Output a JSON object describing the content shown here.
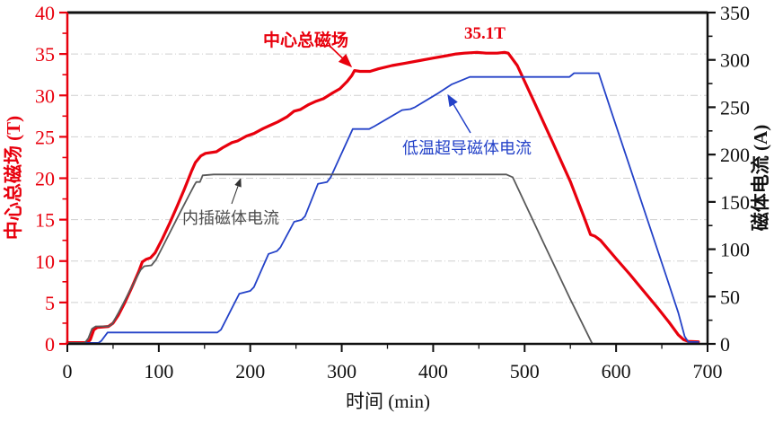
{
  "figure": {
    "x_axis": {
      "label": "时间 (min)",
      "min": 0,
      "max": 700,
      "major_ticks": [
        0,
        100,
        200,
        300,
        400,
        500,
        600,
        700
      ],
      "minor_step": 50
    },
    "y_left": {
      "label": "中心总磁场 (T)",
      "unit": "T",
      "color": "#e8000d",
      "min": 0,
      "max": 40,
      "major_ticks": [
        0,
        5,
        10,
        15,
        20,
        25,
        30,
        35,
        40
      ],
      "minor_step": 2.5
    },
    "y_right": {
      "label": "磁体电流 (A)",
      "unit": "A",
      "color": "#111111",
      "min": 0,
      "max": 350,
      "major_ticks": [
        0,
        50,
        100,
        150,
        200,
        250,
        300,
        350
      ],
      "minor_step": 25
    },
    "annotations": {
      "total_field": {
        "text": "中心总磁场",
        "color": "#e8000d"
      },
      "peak": {
        "text": "35.1T",
        "color": "#e8000d"
      },
      "sc_current": {
        "text": "低温超导磁体电流",
        "color": "#2442c8"
      },
      "insert_current": {
        "text": "内插磁体电流",
        "color": "#4d4d4d"
      }
    },
    "grid_color": "#cfcfcf"
  },
  "chart_data": {
    "type": "line",
    "title": "",
    "xlabel": "时间 (min)",
    "ylabel_left": "中心总磁场 (T)",
    "ylabel_right": "磁体电流 (A)",
    "xlim": [
      0,
      700
    ],
    "ylim_left": [
      0,
      40
    ],
    "ylim_right": [
      0,
      350
    ],
    "grid": "horizontal dash-dot every 5 T",
    "peak_annotation": {
      "text": "35.1T",
      "series": "total_field",
      "value_T": 35.1,
      "time_min": 460
    },
    "series": [
      {
        "key": "total_field",
        "name": "中心总磁场",
        "axis": "left",
        "unit": "T",
        "color": "#e8000d",
        "width": 3.2,
        "points": [
          [
            0,
            0.15
          ],
          [
            22,
            0.15
          ],
          [
            25,
            0.5
          ],
          [
            29,
            1.7
          ],
          [
            33,
            2.0
          ],
          [
            45,
            2.1
          ],
          [
            50,
            2.5
          ],
          [
            56,
            3.5
          ],
          [
            62,
            4.8
          ],
          [
            70,
            6.7
          ],
          [
            78,
            8.7
          ],
          [
            82,
            9.9
          ],
          [
            86,
            10.2
          ],
          [
            91,
            10.4
          ],
          [
            96,
            11.0
          ],
          [
            104,
            12.7
          ],
          [
            112,
            14.6
          ],
          [
            120,
            16.6
          ],
          [
            128,
            18.7
          ],
          [
            136,
            20.9
          ],
          [
            140,
            21.9
          ],
          [
            146,
            22.7
          ],
          [
            151,
            23.0
          ],
          [
            163,
            23.2
          ],
          [
            170,
            23.7
          ],
          [
            180,
            24.3
          ],
          [
            186,
            24.5
          ],
          [
            196,
            25.1
          ],
          [
            204,
            25.4
          ],
          [
            214,
            26.0
          ],
          [
            222,
            26.4
          ],
          [
            230,
            26.8
          ],
          [
            240,
            27.4
          ],
          [
            248,
            28.1
          ],
          [
            255,
            28.3
          ],
          [
            264,
            28.9
          ],
          [
            272,
            29.3
          ],
          [
            280,
            29.6
          ],
          [
            290,
            30.3
          ],
          [
            298,
            30.8
          ],
          [
            306,
            31.7
          ],
          [
            311,
            32.4
          ],
          [
            314,
            33.0
          ],
          [
            320,
            32.9
          ],
          [
            331,
            32.9
          ],
          [
            340,
            33.2
          ],
          [
            355,
            33.6
          ],
          [
            370,
            33.9
          ],
          [
            385,
            34.2
          ],
          [
            400,
            34.5
          ],
          [
            415,
            34.8
          ],
          [
            425,
            35.0
          ],
          [
            434,
            35.1
          ],
          [
            448,
            35.2
          ],
          [
            458,
            35.1
          ],
          [
            470,
            35.1
          ],
          [
            478,
            35.2
          ],
          [
            482,
            35.1
          ],
          [
            492,
            33.6
          ],
          [
            510,
            29.3
          ],
          [
            530,
            24.5
          ],
          [
            550,
            19.6
          ],
          [
            565,
            15.3
          ],
          [
            572,
            13.2
          ],
          [
            577,
            13.0
          ],
          [
            583,
            12.5
          ],
          [
            600,
            10.3
          ],
          [
            615,
            8.4
          ],
          [
            630,
            6.4
          ],
          [
            645,
            4.4
          ],
          [
            658,
            2.6
          ],
          [
            668,
            1.1
          ],
          [
            674,
            0.5
          ],
          [
            679,
            0.3
          ],
          [
            690,
            0.25
          ]
        ]
      },
      {
        "key": "sc_magnet_current",
        "name": "低温超导磁体电流",
        "axis": "right",
        "unit": "A",
        "color": "#2442c8",
        "width": 1.8,
        "points": [
          [
            0,
            1
          ],
          [
            34,
            1
          ],
          [
            37,
            3
          ],
          [
            44,
            12
          ],
          [
            164,
            12
          ],
          [
            168,
            15
          ],
          [
            188,
            53
          ],
          [
            200,
            56
          ],
          [
            204,
            60
          ],
          [
            220,
            95
          ],
          [
            229,
            98
          ],
          [
            233,
            102
          ],
          [
            248,
            129
          ],
          [
            256,
            131
          ],
          [
            260,
            135
          ],
          [
            274,
            169
          ],
          [
            284,
            171
          ],
          [
            288,
            176
          ],
          [
            312,
            227
          ],
          [
            330,
            227
          ],
          [
            336,
            230
          ],
          [
            366,
            247
          ],
          [
            375,
            248
          ],
          [
            380,
            250
          ],
          [
            404,
            264
          ],
          [
            420,
            274
          ],
          [
            440,
            282
          ],
          [
            549,
            282
          ],
          [
            554,
            286
          ],
          [
            581,
            286
          ],
          [
            595,
            245
          ],
          [
            615,
            187
          ],
          [
            635,
            129
          ],
          [
            655,
            71
          ],
          [
            668,
            33
          ],
          [
            675,
            8
          ],
          [
            679,
            2
          ],
          [
            690,
            2
          ]
        ]
      },
      {
        "key": "insert_magnet_current",
        "name": "内插磁体电流",
        "axis": "right",
        "unit": "A",
        "color": "#595959",
        "width": 1.8,
        "points": [
          [
            0,
            1
          ],
          [
            19,
            1
          ],
          [
            23,
            6
          ],
          [
            27,
            16
          ],
          [
            31,
            18.5
          ],
          [
            45,
            18.5
          ],
          [
            49,
            21
          ],
          [
            56,
            33
          ],
          [
            64,
            48
          ],
          [
            72,
            63
          ],
          [
            80,
            78
          ],
          [
            84,
            82
          ],
          [
            92,
            83
          ],
          [
            97,
            89
          ],
          [
            105,
            104
          ],
          [
            115,
            123
          ],
          [
            125,
            142
          ],
          [
            133,
            157
          ],
          [
            139,
            168
          ],
          [
            141,
            171
          ],
          [
            145,
            171
          ],
          [
            148,
            178
          ],
          [
            160,
            179
          ],
          [
            480,
            179
          ],
          [
            487,
            176
          ],
          [
            520,
            108
          ],
          [
            550,
            47
          ],
          [
            574,
            0
          ],
          [
            690,
            0
          ]
        ]
      }
    ]
  }
}
